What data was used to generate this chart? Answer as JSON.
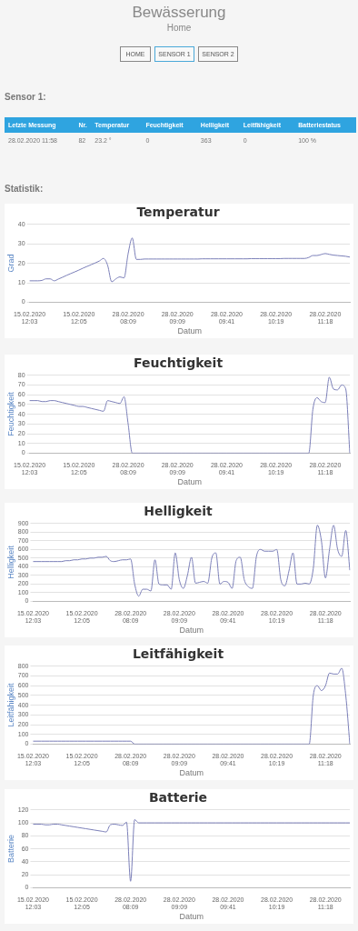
{
  "chart_data": [
    {
      "type": "other",
      "title": "Bewässerung",
      "subtitle": "Home",
      "annotations": [
        "HOME",
        "SENSOR 1",
        "SENSOR 2",
        "Sensor 1:",
        "Letzte Messung",
        "Nr.",
        "Temperatur",
        "Feuchtigkeit",
        "Helligkeit",
        "Leitfähigkeit",
        "Batteriestatus",
        "28.02.2020 11:58",
        "82",
        "23.2 °",
        "0",
        "363",
        "0",
        "100 %",
        "Statistik:"
      ]
    },
    {
      "type": "line",
      "title": "Temperatur",
      "xlabel": "Datum",
      "ylabel": "Grad",
      "color": "#7b7fb8",
      "marker": "none",
      "grid": "y",
      "ylim": [
        0,
        40
      ],
      "yticks": [
        0,
        10,
        20,
        30,
        40
      ],
      "categories": [
        "15.02.2020 12:03",
        null,
        null,
        null,
        null,
        null,
        null,
        null,
        null,
        null,
        null,
        null,
        "15.02.2020 12:05",
        null,
        null,
        null,
        null,
        null,
        null,
        null,
        null,
        null,
        null,
        null,
        "28.02.2020 08:09",
        null,
        null,
        null,
        null,
        null,
        null,
        null,
        null,
        null,
        null,
        null,
        "28.02.2020 09:09",
        null,
        null,
        null,
        null,
        null,
        null,
        null,
        null,
        null,
        null,
        null,
        "28.02.2020 09:41",
        null,
        null,
        null,
        null,
        null,
        null,
        null,
        null,
        null,
        null,
        null,
        "28.02.2020 10:19",
        null,
        null,
        null,
        null,
        null,
        null,
        null,
        null,
        null,
        null,
        null,
        "28.02.2020 11:18",
        null,
        null,
        null,
        null,
        null,
        null
      ],
      "values": [
        11,
        11,
        11,
        11.2,
        12,
        12,
        11,
        11.9,
        12.8,
        13.8,
        14.7,
        15.6,
        16.5,
        17.5,
        18.4,
        19.3,
        20.2,
        21.2,
        22.5,
        19,
        10.5,
        12,
        13,
        12.5,
        25,
        33,
        22,
        22,
        22.2,
        22.2,
        22.2,
        22.2,
        22.2,
        22.2,
        22.2,
        22.2,
        22.2,
        22.2,
        22.2,
        22.2,
        22.2,
        22.2,
        22.3,
        22.3,
        22.3,
        22.3,
        22.3,
        22.3,
        22.3,
        22.3,
        22.3,
        22.3,
        22.3,
        22.3,
        22.4,
        22.4,
        22.4,
        22.4,
        22.4,
        22.4,
        22.4,
        22.4,
        22.5,
        22.5,
        22.5,
        22.5,
        22.5,
        22.5,
        23,
        24,
        24,
        24.5,
        25,
        24.6,
        24.2,
        24,
        23.8,
        23.6,
        23.2
      ]
    },
    {
      "type": "line",
      "title": "Feuchtigkeit",
      "xlabel": "Datum",
      "ylabel": "Feuchtigkeit",
      "color": "#7b7fb8",
      "marker": "none",
      "grid": "y",
      "ylim": [
        0,
        80
      ],
      "yticks": [
        0,
        10,
        20,
        30,
        40,
        50,
        60,
        70,
        80
      ],
      "categories": [
        "15.02.2020 12:03",
        null,
        null,
        null,
        null,
        null,
        null,
        null,
        null,
        null,
        null,
        null,
        "15.02.2020 12:05",
        null,
        null,
        null,
        null,
        null,
        null,
        null,
        null,
        null,
        null,
        null,
        "28.02.2020 08:09",
        null,
        null,
        null,
        null,
        null,
        null,
        null,
        null,
        null,
        null,
        null,
        "28.02.2020 09:09",
        null,
        null,
        null,
        null,
        null,
        null,
        null,
        null,
        null,
        null,
        null,
        "28.02.2020 09:41",
        null,
        null,
        null,
        null,
        null,
        null,
        null,
        null,
        null,
        null,
        null,
        "28.02.2020 10:19",
        null,
        null,
        null,
        null,
        null,
        null,
        null,
        null,
        null,
        null,
        null,
        "28.02.2020 11:18",
        null,
        null,
        null,
        null,
        null,
        null
      ],
      "values": [
        54,
        54,
        54,
        53,
        53,
        54,
        54,
        53,
        52,
        51,
        50,
        49,
        48,
        48,
        47,
        46,
        45,
        44,
        43,
        54,
        53,
        52,
        51,
        58,
        30,
        0,
        0,
        0,
        0,
        0,
        0,
        0,
        0,
        0,
        0,
        0,
        0,
        0,
        0,
        0,
        0,
        0,
        0,
        0,
        0,
        0,
        0,
        0,
        0,
        0,
        0,
        0,
        0,
        0,
        0,
        0,
        0,
        0,
        0,
        0,
        0,
        0,
        0,
        0,
        0,
        0,
        0,
        0,
        0,
        45,
        57,
        53,
        52,
        78,
        66,
        65,
        70,
        66,
        0
      ]
    },
    {
      "type": "line",
      "title": "Helligkeit",
      "xlabel": "Datum",
      "ylabel": "Helligkeit",
      "color": "#7b7fb8",
      "marker": "none",
      "grid": "y",
      "ylim": [
        0,
        900
      ],
      "yticks": [
        0,
        100,
        200,
        300,
        400,
        500,
        600,
        700,
        800,
        900
      ],
      "categories": [
        "15.02.2020 12:03",
        null,
        null,
        null,
        null,
        null,
        null,
        null,
        null,
        null,
        null,
        null,
        "15.02.2020 12:05",
        null,
        null,
        null,
        null,
        null,
        null,
        null,
        null,
        null,
        null,
        null,
        "28.02.2020 08:09",
        null,
        null,
        null,
        null,
        null,
        null,
        null,
        null,
        null,
        null,
        null,
        "28.02.2020 09:09",
        null,
        null,
        null,
        null,
        null,
        null,
        null,
        null,
        null,
        null,
        null,
        "28.02.2020 09:41",
        null,
        null,
        null,
        null,
        null,
        null,
        null,
        null,
        null,
        null,
        null,
        "28.02.2020 10:19",
        null,
        null,
        null,
        null,
        null,
        null,
        null,
        null,
        null,
        null,
        null,
        "28.02.2020 11:18",
        null,
        null,
        null,
        null,
        null,
        null
      ],
      "values": [
        460,
        460,
        460,
        460,
        460,
        460,
        460,
        460,
        470,
        470,
        480,
        480,
        490,
        490,
        500,
        500,
        510,
        510,
        520,
        470,
        460,
        470,
        480,
        480,
        490,
        200,
        60,
        140,
        140,
        120,
        480,
        200,
        190,
        190,
        140,
        560,
        250,
        150,
        300,
        510,
        210,
        220,
        230,
        210,
        500,
        560,
        200,
        230,
        220,
        150,
        470,
        510,
        250,
        170,
        150,
        520,
        600,
        580,
        580,
        580,
        600,
        250,
        180,
        350,
        560,
        200,
        200,
        210,
        200,
        380,
        880,
        700,
        270,
        600,
        880,
        600,
        520,
        820,
        360
      ]
    },
    {
      "type": "line",
      "title": "Leitfähigkeit",
      "xlabel": "Datum",
      "ylabel": "Leitfähigkeit",
      "color": "#7b7fb8",
      "marker": "none",
      "grid": "y",
      "ylim": [
        0,
        800
      ],
      "yticks": [
        0,
        100,
        200,
        300,
        400,
        500,
        600,
        700,
        800
      ],
      "categories": [
        "15.02.2020 12:03",
        null,
        null,
        null,
        null,
        null,
        null,
        null,
        null,
        null,
        null,
        null,
        "15.02.2020 12:05",
        null,
        null,
        null,
        null,
        null,
        null,
        null,
        null,
        null,
        null,
        null,
        "28.02.2020 08:09",
        null,
        null,
        null,
        null,
        null,
        null,
        null,
        null,
        null,
        null,
        null,
        "28.02.2020 09:09",
        null,
        null,
        null,
        null,
        null,
        null,
        null,
        null,
        null,
        null,
        null,
        "28.02.2020 09:41",
        null,
        null,
        null,
        null,
        null,
        null,
        null,
        null,
        null,
        null,
        null,
        "28.02.2020 10:19",
        null,
        null,
        null,
        null,
        null,
        null,
        null,
        null,
        null,
        null,
        null,
        "28.02.2020 11:18",
        null,
        null,
        null,
        null,
        null,
        null
      ],
      "values": [
        30,
        30,
        30,
        30,
        30,
        30,
        30,
        30,
        30,
        30,
        30,
        30,
        30,
        30,
        30,
        30,
        30,
        30,
        30,
        30,
        30,
        30,
        30,
        30,
        30,
        0,
        0,
        0,
        0,
        0,
        0,
        0,
        0,
        0,
        0,
        0,
        0,
        0,
        0,
        0,
        0,
        0,
        0,
        0,
        0,
        0,
        0,
        0,
        0,
        0,
        0,
        0,
        0,
        0,
        0,
        0,
        0,
        0,
        0,
        0,
        0,
        0,
        0,
        0,
        0,
        0,
        0,
        0,
        0,
        500,
        600,
        550,
        600,
        730,
        720,
        720,
        780,
        500,
        0
      ]
    },
    {
      "type": "line",
      "title": "Batterie",
      "xlabel": "Datum",
      "ylabel": "Batterie",
      "color": "#7b7fb8",
      "marker": "none",
      "grid": "y",
      "ylim": [
        0,
        120
      ],
      "yticks": [
        0,
        20,
        40,
        60,
        80,
        100,
        120
      ],
      "categories": [
        "15.02.2020 12:03",
        null,
        null,
        null,
        null,
        null,
        null,
        null,
        null,
        null,
        null,
        null,
        "15.02.2020 12:05",
        null,
        null,
        null,
        null,
        null,
        null,
        null,
        null,
        null,
        null,
        null,
        "28.02.2020 08:09",
        null,
        null,
        null,
        null,
        null,
        null,
        null,
        null,
        null,
        null,
        null,
        "28.02.2020 09:09",
        null,
        null,
        null,
        null,
        null,
        null,
        null,
        null,
        null,
        null,
        null,
        "28.02.2020 09:41",
        null,
        null,
        null,
        null,
        null,
        null,
        null,
        null,
        null,
        null,
        null,
        "28.02.2020 10:19",
        null,
        null,
        null,
        null,
        null,
        null,
        null,
        null,
        null,
        null,
        null,
        "28.02.2020 11:18",
        null,
        null,
        null,
        null,
        null,
        null
      ],
      "values": [
        98,
        98,
        98,
        97,
        97,
        98,
        98,
        97,
        96,
        95,
        94,
        93,
        92,
        91,
        90,
        89,
        88,
        87,
        86,
        97,
        98,
        97,
        96,
        101,
        10,
        105,
        100,
        100,
        100,
        100,
        100,
        100,
        100,
        100,
        100,
        100,
        100,
        100,
        100,
        100,
        100,
        100,
        100,
        100,
        100,
        100,
        100,
        100,
        100,
        100,
        100,
        100,
        100,
        100,
        100,
        100,
        100,
        100,
        100,
        100,
        100,
        100,
        100,
        100,
        100,
        100,
        100,
        100,
        100,
        100,
        100,
        100,
        100,
        100,
        100,
        100,
        100,
        100,
        100
      ]
    }
  ]
}
